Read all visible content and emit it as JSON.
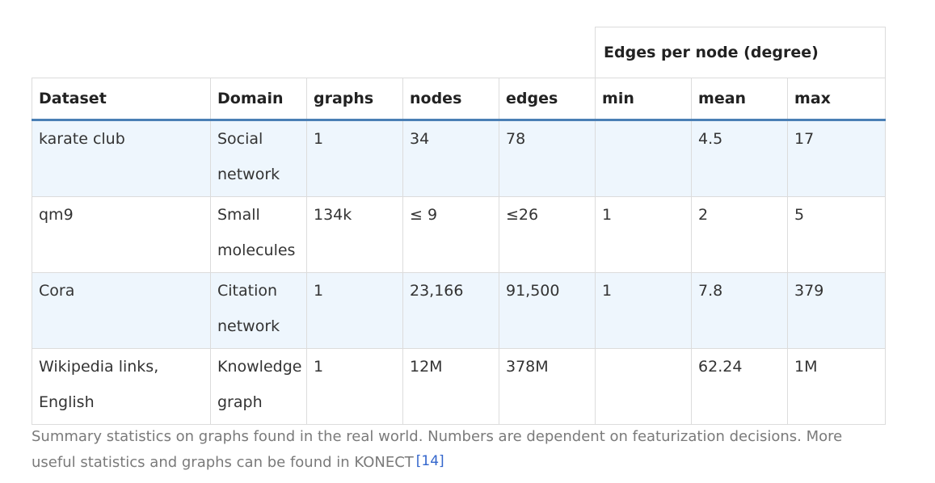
{
  "table": {
    "group_header": "Edges per node (degree)",
    "columns": [
      "Dataset",
      "Domain",
      "graphs",
      "nodes",
      "edges",
      "min",
      "mean",
      "max"
    ],
    "rows": [
      [
        "karate club",
        "Social network",
        "1",
        "34",
        "78",
        "",
        "4.5",
        "17"
      ],
      [
        "qm9",
        "Small molecules",
        "134k",
        "≤ 9",
        "≤26",
        "1",
        "2",
        "5"
      ],
      [
        "Cora",
        "Citation network",
        "1",
        "23,166",
        "91,500",
        "1",
        "7.8",
        "379"
      ],
      [
        "Wikipedia links, English",
        "Knowledge graph",
        "1",
        "12M",
        "378M",
        "",
        "62.24",
        "1M"
      ]
    ]
  },
  "caption": {
    "text": "Summary statistics on graphs found in the real world. Numbers are dependent on featurization decisions. More useful statistics and graphs can be found in KONECT",
    "reference": "[14]"
  }
}
